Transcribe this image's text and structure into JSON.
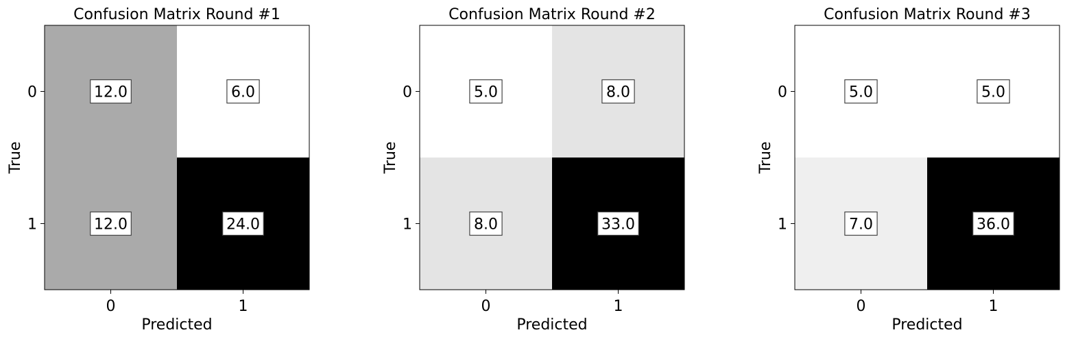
{
  "chart_data": [
    {
      "type": "heatmap",
      "title": "Confusion Matrix Round #1",
      "xlabel": "Predicted",
      "ylabel": "True",
      "x_categories": [
        "0",
        "1"
      ],
      "y_categories": [
        "0",
        "1"
      ],
      "values": [
        [
          12.0,
          6.0
        ],
        [
          12.0,
          24.0
        ]
      ],
      "value_labels": [
        [
          "12.0",
          "6.0"
        ],
        [
          "12.0",
          "24.0"
        ]
      ],
      "colormap": "grayscale (higher = darker)",
      "grid": false
    },
    {
      "type": "heatmap",
      "title": "Confusion Matrix Round #2",
      "xlabel": "Predicted",
      "ylabel": "True",
      "x_categories": [
        "0",
        "1"
      ],
      "y_categories": [
        "0",
        "1"
      ],
      "values": [
        [
          5.0,
          8.0
        ],
        [
          8.0,
          33.0
        ]
      ],
      "value_labels": [
        [
          "5.0",
          "8.0"
        ],
        [
          "8.0",
          "33.0"
        ]
      ],
      "colormap": "grayscale (higher = darker)",
      "grid": false
    },
    {
      "type": "heatmap",
      "title": "Confusion Matrix Round #3",
      "xlabel": "Predicted",
      "ylabel": "True",
      "x_categories": [
        "0",
        "1"
      ],
      "y_categories": [
        "0",
        "1"
      ],
      "values": [
        [
          5.0,
          5.0
        ],
        [
          7.0,
          36.0
        ]
      ],
      "value_labels": [
        [
          "5.0",
          "5.0"
        ],
        [
          "7.0",
          "36.0"
        ]
      ],
      "colormap": "grayscale (higher = darker)",
      "grid": false
    }
  ]
}
